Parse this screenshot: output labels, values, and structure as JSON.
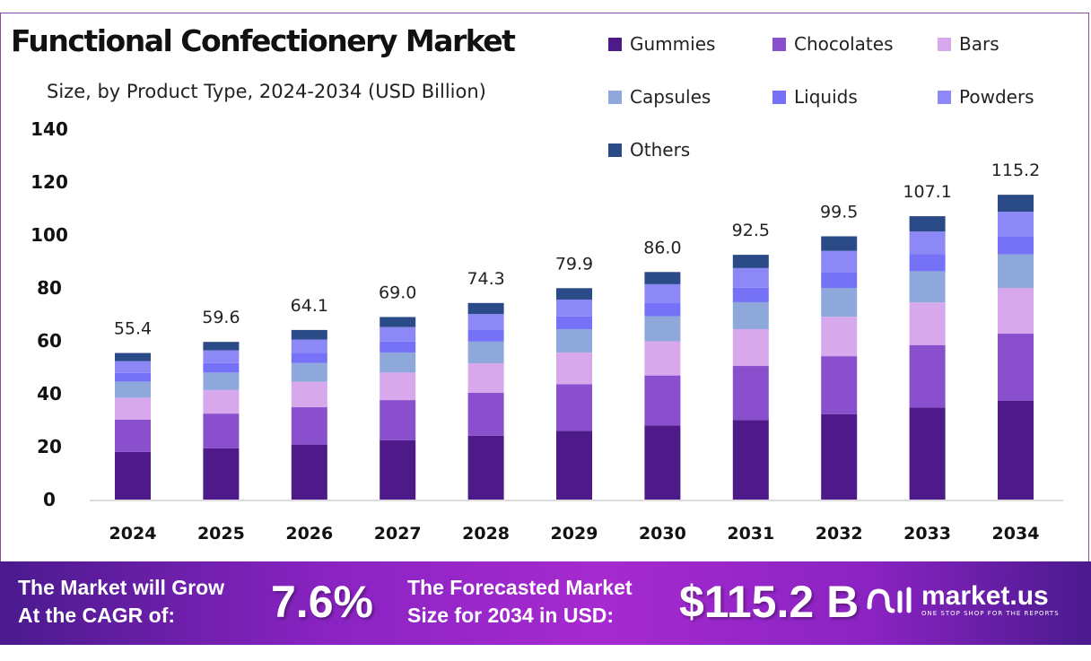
{
  "chart_data": {
    "type": "bar",
    "stacked": true,
    "title": "Functional Confectionery Market",
    "subtitle": "Size, by Product Type, 2024-2034 (USD Billion)",
    "xlabel": "",
    "ylabel": "",
    "ylim": [
      0,
      140
    ],
    "yticks": [
      0,
      20,
      40,
      60,
      80,
      100,
      120,
      140
    ],
    "grid": false,
    "legend_position": "top-right",
    "categories": [
      "2024",
      "2025",
      "2026",
      "2027",
      "2028",
      "2029",
      "2030",
      "2031",
      "2032",
      "2033",
      "2034"
    ],
    "totals": [
      "55.4",
      "59.6",
      "64.1",
      "69.0",
      "74.3",
      "79.9",
      "86.0",
      "92.5",
      "99.5",
      "107.1",
      "115.2"
    ],
    "series": [
      {
        "name": "Gummies",
        "color": "#4e1a8a",
        "values": [
          18.0,
          19.4,
          20.8,
          22.4,
          24.1,
          26.0,
          28.0,
          30.1,
          32.3,
          34.8,
          37.4
        ]
      },
      {
        "name": "Chocolates",
        "color": "#8a4fcc",
        "values": [
          12.2,
          13.1,
          14.1,
          15.2,
          16.3,
          17.6,
          18.9,
          20.4,
          21.9,
          23.6,
          25.3
        ]
      },
      {
        "name": "Bars",
        "color": "#d8a8ec",
        "values": [
          8.3,
          8.9,
          9.6,
          10.4,
          11.1,
          12.0,
          12.9,
          13.9,
          14.9,
          16.1,
          17.3
        ]
      },
      {
        "name": "Capsules",
        "color": "#8fa8dc",
        "values": [
          6.1,
          6.6,
          7.1,
          7.6,
          8.2,
          8.8,
          9.5,
          10.2,
          10.9,
          11.8,
          12.7
        ]
      },
      {
        "name": "Liquids",
        "color": "#7672f8",
        "values": [
          3.3,
          3.6,
          3.8,
          4.1,
          4.5,
          4.8,
          5.2,
          5.5,
          6.0,
          6.4,
          6.9
        ]
      },
      {
        "name": "Powders",
        "color": "#8c88f5",
        "values": [
          4.4,
          4.8,
          5.1,
          5.5,
          5.9,
          6.4,
          6.9,
          7.4,
          8.0,
          8.6,
          9.2
        ]
      },
      {
        "name": "Others",
        "color": "#2a4a88",
        "values": [
          3.1,
          3.2,
          3.6,
          3.8,
          4.2,
          4.3,
          4.6,
          5.0,
          5.5,
          5.8,
          6.4
        ]
      }
    ]
  },
  "banner": {
    "cagr_label_1": "The Market will Grow",
    "cagr_label_2": "At the CAGR of:",
    "cagr_value": "7.6%",
    "size_label_1": "The Forecasted Market",
    "size_label_2": "Size for 2034 in USD:",
    "size_value": "$115.2 B",
    "logo_name": "market.us",
    "logo_tagline": "ONE STOP SHOP FOR THE REPORTS"
  }
}
